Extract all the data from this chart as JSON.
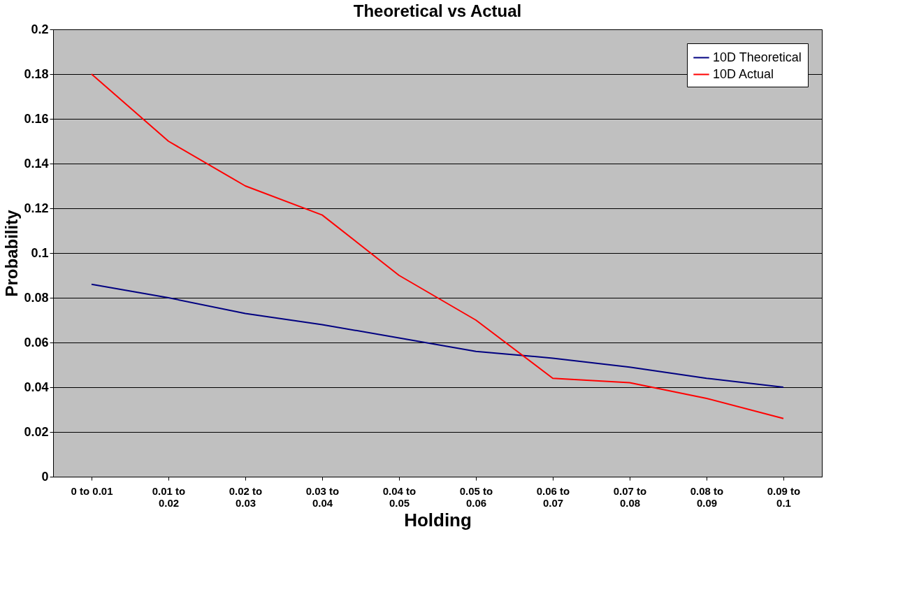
{
  "chart_data": {
    "type": "line",
    "title": "Theoretical vs Actual",
    "xlabel": "Holding",
    "ylabel": "Probability",
    "categories": [
      "0 to 0.01",
      "0.01 to 0.02",
      "0.02 to 0.03",
      "0.03 to 0.04",
      "0.04 to 0.05",
      "0.05 to 0.06",
      "0.06 to 0.07",
      "0.07 to 0.08",
      "0.08 to 0.09",
      "0.09 to 0.1"
    ],
    "series": [
      {
        "name": "10D Theoretical",
        "color": "#000080",
        "values": [
          0.086,
          0.08,
          0.073,
          0.068,
          0.062,
          0.056,
          0.053,
          0.049,
          0.044,
          0.04
        ]
      },
      {
        "name": "10D Actual",
        "color": "#ff0000",
        "values": [
          0.18,
          0.15,
          0.13,
          0.117,
          0.09,
          0.07,
          0.044,
          0.042,
          0.035,
          0.026
        ]
      }
    ],
    "ylim": [
      0,
      0.2
    ],
    "yticks": [
      0,
      0.02,
      0.04,
      0.06,
      0.08,
      0.1,
      0.12,
      0.14,
      0.16,
      0.18,
      0.2
    ],
    "grid": "y",
    "legend": "top right",
    "marker": "none",
    "line_style": "solid"
  }
}
